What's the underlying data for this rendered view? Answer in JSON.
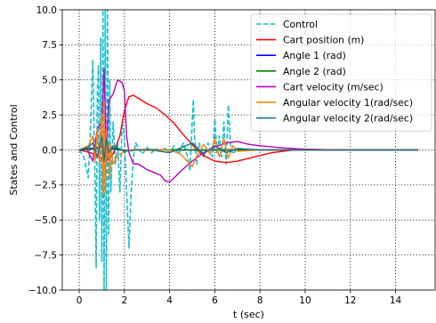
{
  "chart_data": {
    "type": "line",
    "title": "",
    "xlabel": "t (sec)",
    "ylabel": "States and Control",
    "xlim": [
      -0.75,
      15.75
    ],
    "ylim": [
      -10,
      10
    ],
    "xticks": [
      0,
      2,
      4,
      6,
      8,
      10,
      12,
      14
    ],
    "yticks": [
      -10.0,
      -7.5,
      -5.0,
      -2.5,
      0.0,
      2.5,
      5.0,
      7.5,
      10.0
    ],
    "xtick_labels": [
      "0",
      "2",
      "4",
      "6",
      "8",
      "10",
      "12",
      "14"
    ],
    "ytick_labels": [
      "−10.0",
      "−7.5",
      "−5.0",
      "−2.5",
      "0.0",
      "2.5",
      "5.0",
      "7.5",
      "10.0"
    ],
    "grid": true,
    "legend_position": "top-right",
    "series": [
      {
        "name": "Control",
        "color": "#17becf",
        "dash": "dashed",
        "x": [
          0,
          0.2,
          0.4,
          0.5,
          0.6,
          0.7,
          0.75,
          0.8,
          0.85,
          0.9,
          0.95,
          1.0,
          1.05,
          1.1,
          1.15,
          1.2,
          1.25,
          1.3,
          1.35,
          1.4,
          1.5,
          1.6,
          1.7,
          1.8,
          1.9,
          2.0,
          2.1,
          2.2,
          2.3,
          2.4,
          2.5,
          2.6,
          2.8,
          3.0,
          3.2,
          3.4,
          3.6,
          3.8,
          4.0,
          4.2,
          4.4,
          4.6,
          4.8,
          4.9,
          5.0,
          5.05,
          5.1,
          5.2,
          5.3,
          5.5,
          5.7,
          5.9,
          6.0,
          6.1,
          6.2,
          6.3,
          6.4,
          6.5,
          6.6,
          6.7,
          6.8,
          7.0,
          7.5,
          8.0,
          9.0,
          10.0,
          12.0,
          15.0
        ],
        "y": [
          0,
          -0.5,
          -2.0,
          1.5,
          6.4,
          -2.0,
          -8.4,
          4.0,
          6.0,
          -5.0,
          8.0,
          -8.0,
          10.0,
          -10.0,
          10.0,
          -10.0,
          10.0,
          -6.0,
          5.0,
          -3.0,
          2.0,
          -1.0,
          0.5,
          -3.0,
          2.0,
          1.0,
          -3.0,
          -7.0,
          -3.0,
          -0.5,
          0.5,
          0.2,
          -0.3,
          0.2,
          -0.2,
          0.1,
          -0.1,
          0.1,
          -0.2,
          0.3,
          -0.3,
          0.5,
          -0.5,
          -1.5,
          2.0,
          3.6,
          1.0,
          -1.0,
          0.5,
          -0.5,
          0.5,
          -0.5,
          2.2,
          -0.3,
          1.0,
          -0.5,
          2.0,
          -1.0,
          3.2,
          0.3,
          -0.3,
          0.1,
          0.05,
          0,
          0,
          0,
          0,
          0
        ]
      },
      {
        "name": "Cart position (m)",
        "color": "#ff0000",
        "dash": "solid",
        "x": [
          0,
          0.5,
          1.0,
          1.2,
          1.5,
          1.8,
          2.0,
          2.2,
          2.4,
          2.6,
          2.8,
          3.0,
          3.4,
          3.8,
          4.2,
          4.6,
          5.0,
          5.2,
          5.5,
          6.0,
          6.5,
          7.0,
          7.5,
          8.0,
          8.5,
          9.0,
          9.5,
          10.0,
          11.0,
          12.0,
          15.0
        ],
        "y": [
          0,
          -0.2,
          -0.6,
          -0.8,
          -0.3,
          1.0,
          2.8,
          3.8,
          3.9,
          3.7,
          3.5,
          3.3,
          3.0,
          2.5,
          1.9,
          1.1,
          0.4,
          0.0,
          -0.4,
          -0.8,
          -0.9,
          -0.8,
          -0.6,
          -0.4,
          -0.2,
          -0.1,
          0.0,
          0.05,
          0.02,
          0,
          0
        ]
      },
      {
        "name": "Angle 1 (rad)",
        "color": "#0000ff",
        "dash": "solid",
        "x": [
          0,
          0.5,
          1.0,
          1.2,
          1.5,
          2.0,
          3.0,
          4.0,
          6.0,
          8.0,
          15.0
        ],
        "y": [
          0,
          0.05,
          0.2,
          -0.15,
          0.1,
          -0.05,
          0.03,
          0.0,
          0.0,
          0.0,
          0.0
        ]
      },
      {
        "name": "Angle 2 (rad)",
        "color": "#008000",
        "dash": "solid",
        "x": [
          0,
          0.5,
          1.0,
          1.2,
          1.5,
          2.0,
          3.0,
          4.0,
          6.0,
          8.0,
          15.0
        ],
        "y": [
          0,
          0.1,
          0.25,
          -0.2,
          0.15,
          -0.05,
          0.02,
          0.0,
          0.0,
          0.0,
          0.0
        ]
      },
      {
        "name": "Cart velocity (m/sec)",
        "color": "#bf00bf",
        "dash": "solid",
        "x": [
          0,
          0.3,
          0.6,
          0.8,
          1.0,
          1.1,
          1.2,
          1.3,
          1.5,
          1.7,
          1.9,
          2.0,
          2.1,
          2.2,
          2.4,
          2.6,
          2.8,
          3.0,
          3.3,
          3.6,
          3.8,
          4.0,
          4.2,
          4.5,
          5.0,
          5.5,
          6.0,
          6.5,
          7.0,
          7.5,
          8.0,
          9.0,
          10.0,
          11.0,
          15.0
        ],
        "y": [
          0,
          0.2,
          -0.8,
          1.5,
          2.0,
          5.8,
          -0.5,
          3.5,
          4.0,
          5.0,
          4.8,
          4.2,
          1.0,
          -0.2,
          -1.0,
          -1.0,
          -1.2,
          -1.4,
          -1.6,
          -1.8,
          -2.2,
          -2.3,
          -2.0,
          -1.5,
          -0.8,
          -0.2,
          0.2,
          0.5,
          0.6,
          0.4,
          0.3,
          0.15,
          0.05,
          0,
          0
        ]
      },
      {
        "name": "Angular velocity 1(rad/sec)",
        "color": "#ff7f0e",
        "dash": "solid",
        "x": [
          0,
          0.4,
          0.6,
          0.7,
          0.8,
          0.9,
          1.0,
          1.05,
          1.1,
          1.15,
          1.2,
          1.25,
          1.3,
          1.35,
          1.4,
          1.5,
          1.7,
          2.0,
          2.5,
          3.0,
          3.5,
          4.0,
          4.5,
          5.0,
          5.2,
          5.5,
          5.8,
          6.0,
          6.2,
          6.4,
          6.6,
          6.8,
          7.0,
          8.0,
          15.0
        ],
        "y": [
          0,
          0.3,
          1.0,
          -0.8,
          1.5,
          -1.0,
          2.5,
          -3.2,
          3.5,
          -3.0,
          1.5,
          -0.5,
          0.5,
          -2.0,
          0.3,
          -1.0,
          -0.4,
          -0.1,
          0.05,
          -0.05,
          0.0,
          0.0,
          -0.3,
          -1.2,
          -0.5,
          0.4,
          -0.3,
          0.8,
          -0.5,
          0.8,
          -0.6,
          0.3,
          -0.1,
          0.0,
          0.0
        ]
      },
      {
        "name": "Angular velocity 2(rad/sec)",
        "color": "#1f6f8b",
        "dash": "solid",
        "x": [
          0,
          0.4,
          0.6,
          0.8,
          1.0,
          1.1,
          1.2,
          1.3,
          1.5,
          2.0,
          3.0,
          4.0,
          5.0,
          5.5,
          6.0,
          6.5,
          7.0,
          8.0,
          15.0
        ],
        "y": [
          0,
          0.2,
          0.5,
          -0.5,
          1.0,
          -0.8,
          0.8,
          -0.2,
          0.3,
          -0.1,
          0.05,
          -0.2,
          0.5,
          -0.3,
          0.3,
          -0.2,
          0.1,
          0.0,
          0.0
        ]
      }
    ]
  }
}
